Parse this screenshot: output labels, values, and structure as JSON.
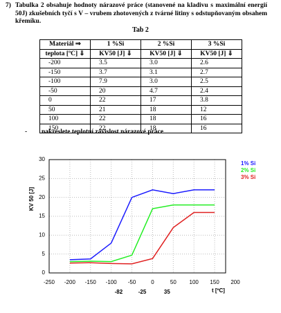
{
  "header": {
    "number": "7)",
    "text": "Tabulka 2 obsahuje hodnoty nárazové práce (stanovené na kladivu s maximální energií 50J) zkušebních tyčí s V – vrubem zhotovených z tvárné litiny s odstupňovaným obsahem křemíku."
  },
  "table": {
    "caption": "Tab 2",
    "header": [
      [
        "Materiál ⇒",
        "1 %Si",
        "2 %Si",
        "3 %Si"
      ],
      [
        "teplota [ºC] ⇓",
        "KV50 [J] ⇓",
        "KV50 [J] ⇓",
        "KV50 [J] ⇓"
      ]
    ],
    "rows": [
      [
        "-200",
        "3.5",
        "3.0",
        "2.6"
      ],
      [
        "-150",
        "3.7",
        "3.1",
        "2.7"
      ],
      [
        "-100",
        "7.9",
        "3.0",
        "2.5"
      ],
      [
        "-50",
        "20",
        "4.7",
        "2.4"
      ],
      [
        "0",
        "22",
        "17",
        "3.8"
      ],
      [
        "50",
        "21",
        "18",
        "12"
      ],
      [
        "100",
        "22",
        "18",
        "16"
      ],
      [
        "150",
        "22",
        "18",
        "16"
      ]
    ]
  },
  "task": {
    "bullet": "-",
    "text": "nakreslete teplotní závislost nárazové práce"
  },
  "chart_data": {
    "type": "line",
    "xlabel": "t [ºC]",
    "ylabel": "KV 50 [J]",
    "x": [
      -200,
      -150,
      -100,
      -50,
      0,
      50,
      100,
      150
    ],
    "series": [
      {
        "name": "1% Si",
        "color": "#1a1aff",
        "values": [
          3.5,
          3.7,
          7.9,
          20,
          22,
          21,
          22,
          22
        ]
      },
      {
        "name": "2% Si",
        "color": "#22ee22",
        "values": [
          3.0,
          3.1,
          3.0,
          4.7,
          17,
          18,
          18,
          18
        ]
      },
      {
        "name": "3% Si",
        "color": "#e02020",
        "values": [
          2.6,
          2.7,
          2.5,
          2.4,
          3.8,
          12,
          16,
          16
        ]
      }
    ],
    "xlim": [
      -250,
      200
    ],
    "ylim": [
      0,
      30
    ],
    "xticks": [
      -250,
      -200,
      -150,
      -100,
      -50,
      0,
      50,
      100,
      150,
      200
    ],
    "yticks": [
      0,
      5,
      10,
      15,
      20,
      25,
      30
    ],
    "marked_x": [
      -82,
      -25,
      35
    ],
    "grid": true
  }
}
